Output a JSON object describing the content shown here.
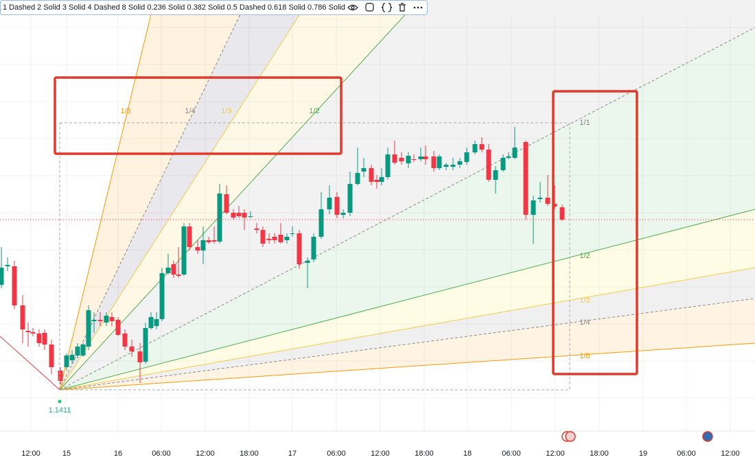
{
  "toolbar": {
    "text": "1 Dashed 2 Solid 3 Solid 4 Dashed 8 Solid 0.236 Solid 0.382 Solid 0.5 Dashed 0.618 Solid 0.786 Solid"
  },
  "fan_labels": {
    "top": [
      "1/8",
      "1/4",
      "1/3",
      "1/2"
    ],
    "right": [
      "1/1",
      "1/2",
      "1/3",
      "1/4",
      "1/8"
    ]
  },
  "price_label": "1.1411",
  "x_axis": {
    "labels": [
      "12:00",
      "15",
      "16",
      "06:00",
      "12:00",
      "18:00",
      "17",
      "06:00",
      "12:00",
      "18:00",
      "18",
      "06:00",
      "12:00",
      "18:00",
      "19",
      "06:00",
      "12:00"
    ]
  }
}
